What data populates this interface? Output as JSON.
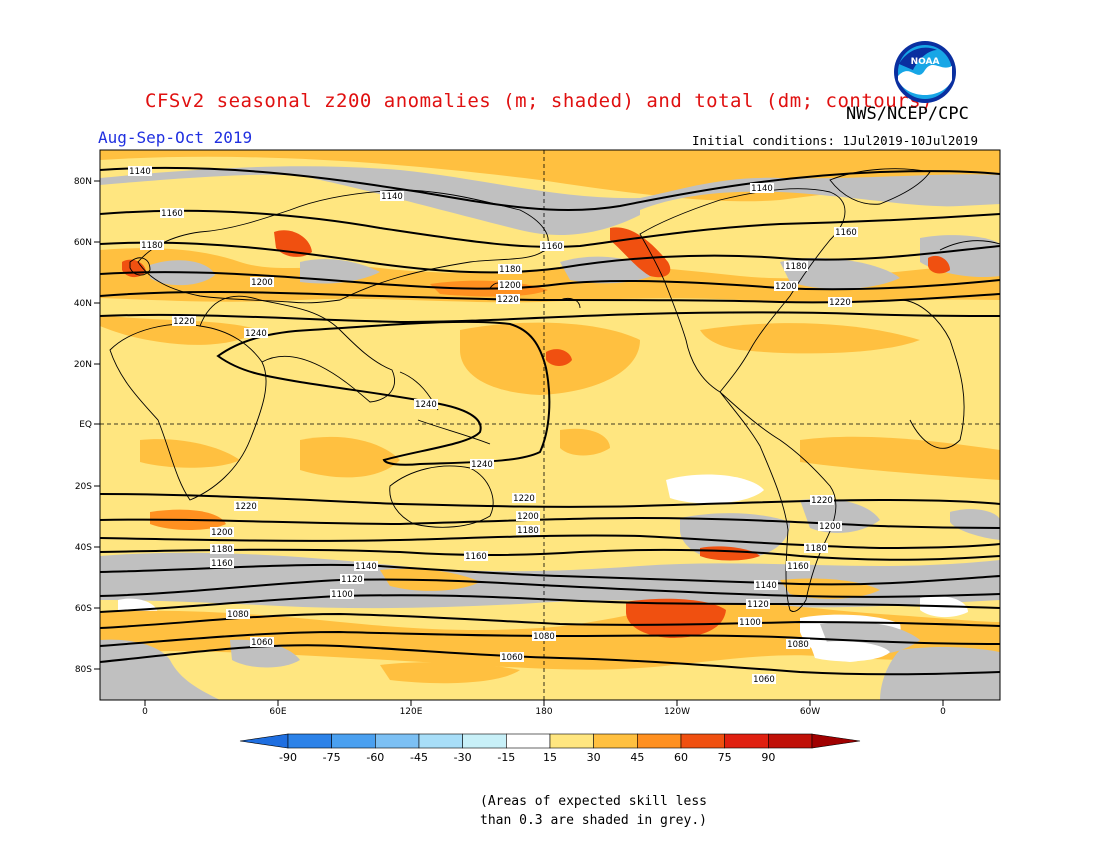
{
  "header": {
    "title": "CFSv2 seasonal z200 anomalies (m; shaded) and total (dm; contours)",
    "agency": "NWS/NCEP/CPC",
    "season": "Aug-Sep-Oct 2019",
    "initial_conditions": "Initial conditions: 1Jul2019-10Jul2019"
  },
  "logo": {
    "icon": "noaa-logo-icon",
    "text": "NOAA"
  },
  "colors": {
    "grey_low_skill": "#c0c0c0",
    "white": "#ffffff",
    "light_yellow": "#ffe680",
    "yellow_orange": "#ffc040",
    "orange": "#ff9020",
    "dark_orange": "#f05010",
    "contour": "#000000"
  },
  "map": {
    "lat_labels": [
      "80N",
      "60N",
      "40N",
      "20N",
      "EQ",
      "20S",
      "40S",
      "60S",
      "80S"
    ],
    "lon_labels": [
      "0",
      "60E",
      "120E",
      "180",
      "120W",
      "60W",
      "0"
    ]
  },
  "contours": {
    "labels": [
      "1140",
      "1140",
      "1140",
      "1160",
      "1160",
      "1160",
      "1180",
      "1180",
      "1180",
      "1200",
      "1200",
      "1200",
      "1220",
      "1220",
      "1220",
      "1240",
      "1240",
      "1240",
      "1220",
      "1220",
      "1220",
      "1200",
      "1200",
      "1200",
      "1180",
      "1180",
      "1180",
      "1160",
      "1160",
      "1160",
      "1140",
      "1140",
      "1120",
      "1120",
      "1100",
      "1100",
      "1080",
      "1080",
      "1080",
      "1060",
      "1060",
      "1060"
    ]
  },
  "colorbar": {
    "ticks": [
      "-90",
      "-75",
      "-60",
      "-45",
      "-30",
      "-15",
      "15",
      "30",
      "45",
      "60",
      "75",
      "90"
    ],
    "colors": [
      "#1e6ee0",
      "#2c82e8",
      "#4aa0f0",
      "#7cc0f4",
      "#a8def8",
      "#c8f0f8",
      "#ffffff",
      "#ffe680",
      "#ffc040",
      "#ff9020",
      "#f05010",
      "#e02010",
      "#c01008",
      "#a00000"
    ]
  },
  "footnote": "(Areas of expected skill less\nthan 0.3 are shaded in grey.)"
}
